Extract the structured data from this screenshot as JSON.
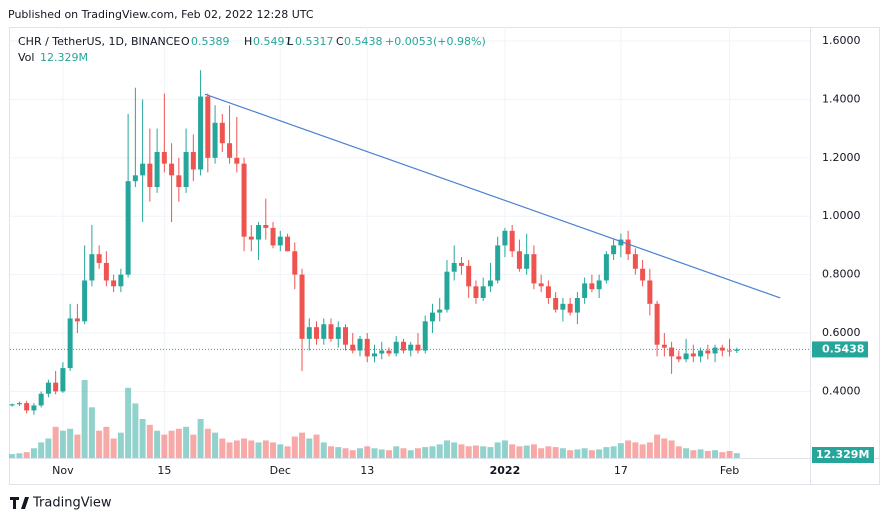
{
  "published": "Published on TradingView.com, Feb 02, 2022 12:28 UTC",
  "brand": "TradingView",
  "chart_data": {
    "type": "candlestick",
    "legend": {
      "symbol": "CHR / TetherUS, 1D, BINANCE",
      "ohlc": [
        {
          "key": "O",
          "value": 0.5389
        },
        {
          "key": "H",
          "value": 0.5497
        },
        {
          "key": "L",
          "value": 0.5317
        },
        {
          "key": "C",
          "value": 0.5438
        }
      ],
      "change": {
        "value": 0.0053,
        "label": "+0.0053"
      },
      "change_pct": {
        "value": 0.98,
        "label": "(+0.98%)"
      },
      "volume_title": "Vol",
      "volume": {
        "value": 12329000,
        "label": "12.329M"
      }
    },
    "up_color": "#26a69a",
    "down_color": "#ef5350",
    "grid": true,
    "open": [
      0.352,
      0.356,
      0.36,
      0.335,
      0.352,
      0.392,
      0.43,
      0.4,
      0.48,
      0.65,
      0.64,
      0.78,
      0.87,
      0.84,
      0.78,
      0.76,
      0.8,
      1.12,
      1.14,
      1.18,
      1.1,
      1.22,
      1.18,
      1.14,
      1.1,
      1.22,
      1.16,
      1.41,
      1.2,
      1.32,
      1.25,
      1.2,
      1.18,
      0.93,
      0.92,
      0.97,
      0.96,
      0.9,
      0.93,
      0.88,
      0.8,
      0.58,
      0.62,
      0.58,
      0.63,
      0.58,
      0.62,
      0.56,
      0.54,
      0.58,
      0.52,
      0.53,
      0.54,
      0.53,
      0.57,
      0.54,
      0.56,
      0.54,
      0.64,
      0.67,
      0.68,
      0.81,
      0.84,
      0.83,
      0.76,
      0.72,
      0.76,
      0.78,
      0.9,
      0.95,
      0.88,
      0.82,
      0.87,
      0.77,
      0.76,
      0.72,
      0.68,
      0.7,
      0.67,
      0.72,
      0.77,
      0.75,
      0.78,
      0.87,
      0.9,
      0.92,
      0.87,
      0.82,
      0.78,
      0.7,
      0.56,
      0.55,
      0.52,
      0.51,
      0.53,
      0.52,
      0.54,
      0.53,
      0.55,
      0.54,
      0.5389
    ],
    "high": [
      0.358,
      0.365,
      0.368,
      0.36,
      0.4,
      0.44,
      0.47,
      0.5,
      0.7,
      0.7,
      0.9,
      0.97,
      0.9,
      0.88,
      0.8,
      0.82,
      1.35,
      1.44,
      1.4,
      1.3,
      1.3,
      1.42,
      1.25,
      1.2,
      1.3,
      1.28,
      1.5,
      1.42,
      1.38,
      1.35,
      1.38,
      1.34,
      1.2,
      0.97,
      0.98,
      1.06,
      0.98,
      0.95,
      0.94,
      0.91,
      0.82,
      0.65,
      0.64,
      0.65,
      0.65,
      0.64,
      0.63,
      0.6,
      0.59,
      0.6,
      0.56,
      0.57,
      0.55,
      0.59,
      0.58,
      0.57,
      0.6,
      0.66,
      0.7,
      0.72,
      0.85,
      0.9,
      0.86,
      0.85,
      0.78,
      0.79,
      0.84,
      0.93,
      0.96,
      0.97,
      0.92,
      0.94,
      0.9,
      0.8,
      0.78,
      0.74,
      0.72,
      0.72,
      0.74,
      0.79,
      0.8,
      0.8,
      0.88,
      0.92,
      0.94,
      0.95,
      0.89,
      0.85,
      0.82,
      0.71,
      0.6,
      0.57,
      0.54,
      0.58,
      0.56,
      0.55,
      0.56,
      0.56,
      0.56,
      0.58,
      0.5497
    ],
    "low": [
      0.348,
      0.35,
      0.325,
      0.32,
      0.345,
      0.38,
      0.39,
      0.395,
      0.47,
      0.6,
      0.63,
      0.76,
      0.82,
      0.76,
      0.74,
      0.74,
      0.79,
      1.1,
      0.98,
      1.05,
      1.08,
      1.15,
      0.98,
      1.05,
      1.08,
      1.12,
      1.14,
      1.15,
      1.18,
      1.22,
      1.18,
      1.15,
      0.88,
      0.88,
      0.85,
      0.92,
      0.89,
      0.88,
      0.88,
      0.75,
      0.47,
      0.54,
      0.56,
      0.56,
      0.57,
      0.55,
      0.54,
      0.53,
      0.52,
      0.5,
      0.5,
      0.51,
      0.52,
      0.52,
      0.53,
      0.52,
      0.53,
      0.53,
      0.6,
      0.64,
      0.67,
      0.78,
      0.8,
      0.72,
      0.7,
      0.71,
      0.74,
      0.77,
      0.86,
      0.86,
      0.81,
      0.8,
      0.75,
      0.74,
      0.7,
      0.67,
      0.64,
      0.66,
      0.63,
      0.7,
      0.74,
      0.72,
      0.77,
      0.85,
      0.86,
      0.85,
      0.8,
      0.76,
      0.66,
      0.52,
      0.52,
      0.46,
      0.5,
      0.5,
      0.5,
      0.5,
      0.51,
      0.5,
      0.52,
      0.52,
      0.5317
    ],
    "close": [
      0.356,
      0.36,
      0.335,
      0.352,
      0.392,
      0.43,
      0.4,
      0.48,
      0.65,
      0.64,
      0.78,
      0.87,
      0.84,
      0.78,
      0.76,
      0.8,
      1.12,
      1.14,
      1.18,
      1.1,
      1.22,
      1.18,
      1.14,
      1.1,
      1.22,
      1.16,
      1.41,
      1.2,
      1.32,
      1.25,
      1.2,
      1.18,
      0.93,
      0.92,
      0.97,
      0.96,
      0.9,
      0.93,
      0.88,
      0.8,
      0.58,
      0.62,
      0.58,
      0.63,
      0.58,
      0.62,
      0.56,
      0.54,
      0.58,
      0.52,
      0.53,
      0.54,
      0.53,
      0.57,
      0.54,
      0.56,
      0.54,
      0.64,
      0.67,
      0.68,
      0.81,
      0.84,
      0.83,
      0.76,
      0.72,
      0.76,
      0.78,
      0.9,
      0.95,
      0.88,
      0.82,
      0.87,
      0.77,
      0.76,
      0.72,
      0.68,
      0.7,
      0.67,
      0.72,
      0.77,
      0.75,
      0.78,
      0.87,
      0.9,
      0.92,
      0.87,
      0.82,
      0.78,
      0.7,
      0.56,
      0.55,
      0.52,
      0.51,
      0.53,
      0.52,
      0.54,
      0.53,
      0.55,
      0.54,
      0.5385,
      0.5438
    ],
    "volume": [
      10000000,
      12000000,
      15000000,
      25000000,
      40000000,
      50000000,
      80000000,
      70000000,
      75000000,
      60000000,
      200000000,
      130000000,
      70000000,
      80000000,
      50000000,
      65000000,
      180000000,
      140000000,
      100000000,
      85000000,
      70000000,
      60000000,
      70000000,
      75000000,
      80000000,
      60000000,
      100000000,
      75000000,
      65000000,
      50000000,
      40000000,
      45000000,
      50000000,
      45000000,
      40000000,
      45000000,
      40000000,
      35000000,
      30000000,
      55000000,
      65000000,
      50000000,
      60000000,
      40000000,
      30000000,
      28000000,
      25000000,
      20000000,
      25000000,
      30000000,
      25000000,
      22000000,
      20000000,
      30000000,
      25000000,
      20000000,
      25000000,
      28000000,
      30000000,
      35000000,
      45000000,
      40000000,
      35000000,
      30000000,
      32000000,
      30000000,
      28000000,
      40000000,
      45000000,
      35000000,
      30000000,
      32000000,
      35000000,
      25000000,
      30000000,
      28000000,
      25000000,
      20000000,
      22000000,
      25000000,
      20000000,
      22000000,
      28000000,
      30000000,
      38000000,
      45000000,
      40000000,
      35000000,
      40000000,
      60000000,
      50000000,
      45000000,
      30000000,
      25000000,
      20000000,
      22000000,
      18000000,
      20000000,
      15000000,
      18000000,
      12329000
    ],
    "xlim": [
      -0.3,
      110.1
    ],
    "xticks": [
      {
        "value": 7,
        "label": "Nov"
      },
      {
        "value": 21,
        "label": "15"
      },
      {
        "value": 37,
        "label": "Dec"
      },
      {
        "value": 49,
        "label": "13"
      },
      {
        "value": 68,
        "label": "2022"
      },
      {
        "value": 84,
        "label": "17"
      },
      {
        "value": 99,
        "label": "Feb"
      }
    ],
    "ylim": [
      0.172,
      1.648
    ],
    "yticks": [
      {
        "value": 0.4,
        "label": "0.4000"
      },
      {
        "value": 0.6,
        "label": "0.6000"
      },
      {
        "value": 0.8,
        "label": "0.8000"
      },
      {
        "value": 1.0,
        "label": "1.0000"
      },
      {
        "value": 1.2,
        "label": "1.2000"
      },
      {
        "value": 1.4,
        "label": "1.4000"
      },
      {
        "value": 1.6,
        "label": "1.6000"
      }
    ],
    "trendline": {
      "x": [
        26.6,
        106.0
      ],
      "y": [
        1.418,
        0.72
      ],
      "color": "#4a7fd4"
    }
  }
}
